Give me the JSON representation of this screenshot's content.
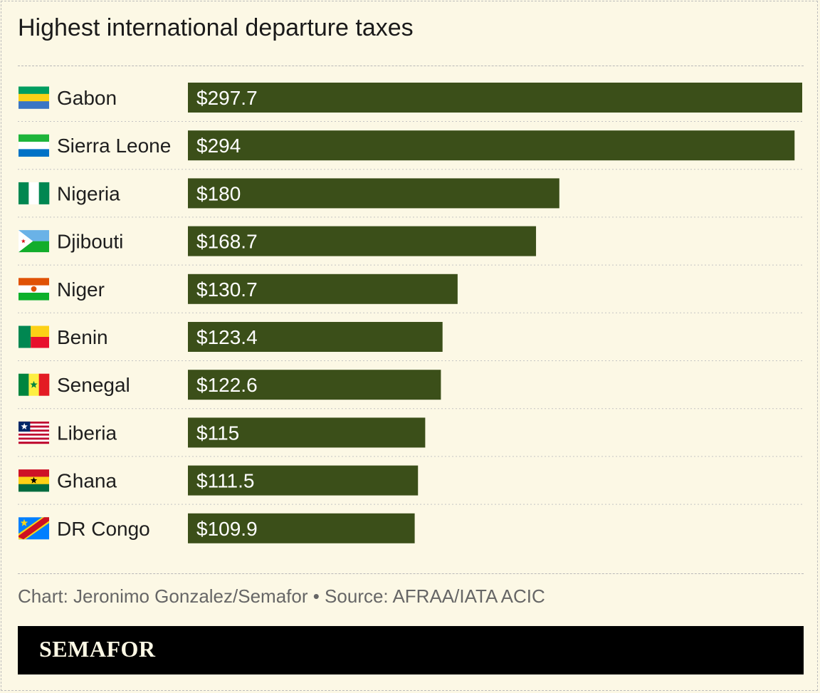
{
  "title": "Highest international departure taxes",
  "source": "Chart: Jeronimo Gonzalez/Semafor • Source: AFRAA/IATA ACIC",
  "brand": "SEMAFOR",
  "colors": {
    "bar": "#3b4f19",
    "background": "#fcf8e5",
    "value_text": "#ffffff"
  },
  "chart_data": {
    "type": "bar",
    "orientation": "horizontal",
    "categories": [
      "Gabon",
      "Sierra Leone",
      "Nigeria",
      "Djibouti",
      "Niger",
      "Benin",
      "Senegal",
      "Liberia",
      "Ghana",
      "DR Congo"
    ],
    "values": [
      297.7,
      294,
      180,
      168.7,
      130.7,
      123.4,
      122.6,
      115,
      111.5,
      109.9
    ],
    "value_labels": [
      "$297.7",
      "$294",
      "$180",
      "$168.7",
      "$130.7",
      "$123.4",
      "$122.6",
      "$115",
      "$111.5",
      "$109.9"
    ],
    "flags": [
      "gabon-flag-icon",
      "sierra-leone-flag-icon",
      "nigeria-flag-icon",
      "djibouti-flag-icon",
      "niger-flag-icon",
      "benin-flag-icon",
      "senegal-flag-icon",
      "liberia-flag-icon",
      "ghana-flag-icon",
      "dr-congo-flag-icon"
    ],
    "xlim": [
      0,
      297.7
    ],
    "grid": false
  }
}
